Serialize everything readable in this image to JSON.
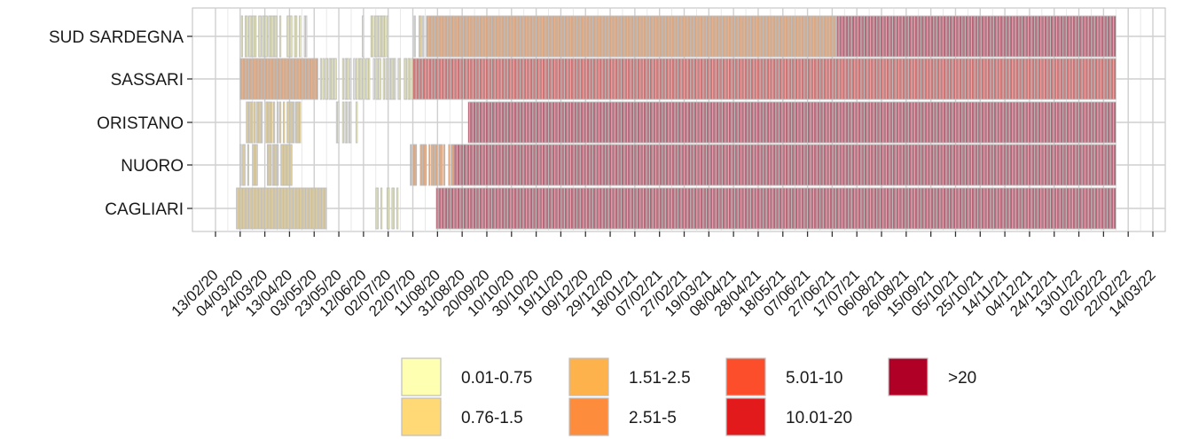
{
  "chart_data": {
    "type": "heatmap",
    "title": "",
    "xlabel": "",
    "ylabel": "",
    "rows": [
      "SUD SARDEGNA",
      "SASSARI",
      "ORISTANO",
      "NUORO",
      "CAGLIARI"
    ],
    "x_ticks": [
      "13/02/20",
      "04/03/20",
      "24/03/20",
      "13/04/20",
      "03/05/20",
      "23/05/20",
      "12/06/20",
      "02/07/20",
      "22/07/20",
      "11/08/20",
      "31/08/20",
      "20/09/20",
      "10/10/20",
      "30/10/20",
      "19/11/20",
      "09/12/20",
      "29/12/20",
      "18/01/21",
      "07/02/21",
      "27/02/21",
      "19/03/21",
      "08/04/21",
      "28/04/21",
      "18/05/21",
      "07/06/21",
      "27/06/21",
      "17/07/21",
      "06/08/21",
      "26/08/21",
      "15/09/21",
      "05/10/21",
      "25/10/21",
      "14/11/21",
      "04/12/21",
      "24/12/21",
      "13/01/22",
      "02/02/22",
      "22/02/22",
      "14/03/22"
    ],
    "x_range": [
      "13/02/20",
      "14/03/22"
    ],
    "grid": true,
    "legend_position": "bottom",
    "legend": [
      {
        "label": "0.01-0.75",
        "color": "#FFFFB2"
      },
      {
        "label": "0.76-1.5",
        "color": "#FED976"
      },
      {
        "label": "1.51-2.5",
        "color": "#FEB24C"
      },
      {
        "label": "2.51-5",
        "color": "#FD8D3C"
      },
      {
        "label": "5.01-10",
        "color": "#FC4E2A"
      },
      {
        "label": "10.01-20",
        "color": "#E31A1C"
      },
      {
        "label": ">20",
        "color": "#B10026"
      }
    ],
    "cell_border_color": "#BEBEBE",
    "activity_by_row": [
      {
        "row": "SUD SARDEGNA",
        "periods": [
          {
            "from": "04/03/20",
            "to": "27/04/20",
            "level": "0.01-0.75",
            "coverage": "sparse"
          },
          {
            "from": "11/06/20",
            "to": "02/07/20",
            "level": "0.01-0.75",
            "coverage": "sparse"
          },
          {
            "from": "22/07/20",
            "to": "02/08/20",
            "level": "0.76-1.5",
            "coverage": "sparse"
          },
          {
            "from": "02/08/20",
            "to": "01/07/21",
            "level": "2.51-5",
            "coverage": "full"
          },
          {
            "from": "01/07/21",
            "to": "12/02/22",
            "level": ">20",
            "coverage": "full"
          }
        ]
      },
      {
        "row": "SASSARI",
        "periods": [
          {
            "from": "04/03/20",
            "to": "06/05/20",
            "level": "2.51-5",
            "coverage": "full"
          },
          {
            "from": "06/05/20",
            "to": "22/07/20",
            "level": "0.01-0.75",
            "coverage": "sparse"
          },
          {
            "from": "22/07/20",
            "to": "12/02/22",
            "level": "10.01-20",
            "coverage": "full"
          }
        ]
      },
      {
        "row": "ORISTANO",
        "periods": [
          {
            "from": "06/03/20",
            "to": "24/04/20",
            "level": "0.76-1.5",
            "coverage": "sparse"
          },
          {
            "from": "17/05/20",
            "to": "07/06/20",
            "level": "0.01-0.75",
            "coverage": "sparse"
          },
          {
            "from": "05/09/20",
            "to": "12/02/22",
            "level": ">20",
            "coverage": "full"
          }
        ]
      },
      {
        "row": "NUORO",
        "periods": [
          {
            "from": "04/03/20",
            "to": "15/04/20",
            "level": "0.76-1.5",
            "coverage": "sparse"
          },
          {
            "from": "20/07/20",
            "to": "24/08/20",
            "level": "2.51-5",
            "coverage": "sparse"
          },
          {
            "from": "24/08/20",
            "to": "12/02/22",
            "level": ">20",
            "coverage": "full"
          }
        ]
      },
      {
        "row": "CAGLIARI",
        "periods": [
          {
            "from": "01/03/20",
            "to": "13/05/20",
            "level": "0.76-1.5",
            "coverage": "full"
          },
          {
            "from": "21/06/20",
            "to": "10/07/20",
            "level": "0.01-0.75",
            "coverage": "sparse"
          },
          {
            "from": "10/08/20",
            "to": "12/02/22",
            "level": ">20",
            "coverage": "full"
          }
        ]
      }
    ]
  }
}
